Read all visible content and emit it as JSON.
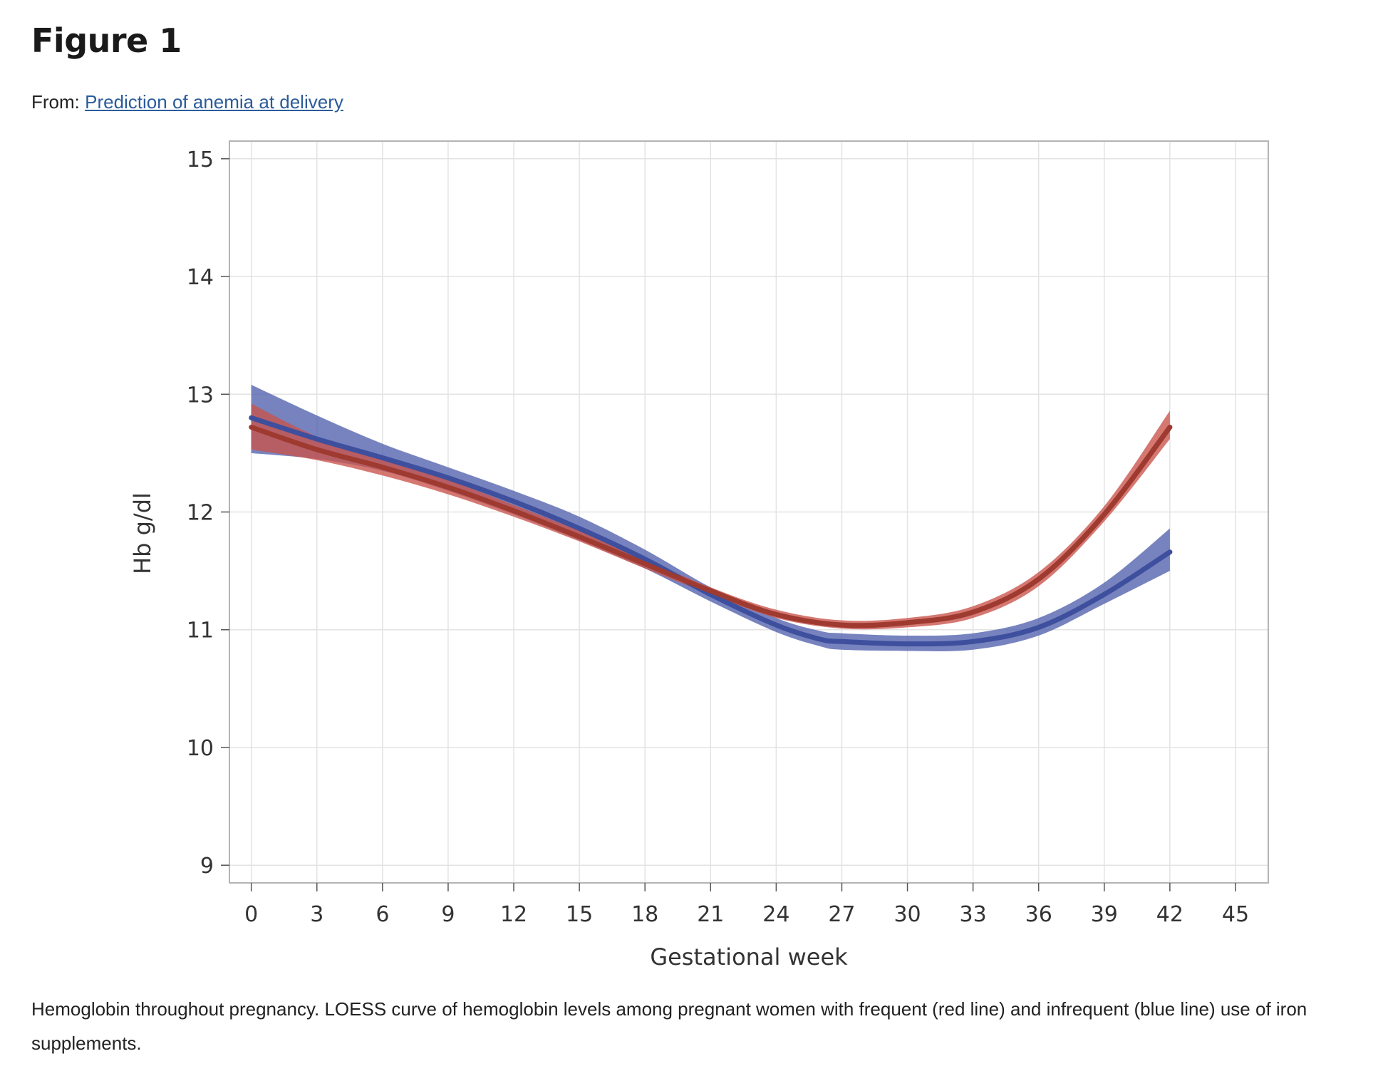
{
  "figure": {
    "title": "Figure 1",
    "from_prefix": "From: ",
    "from_link": "Prediction of anemia at delivery",
    "caption": "Hemoglobin throughout pregnancy. LOESS curve of hemoglobin levels among pregnant women with frequent (red line) and infrequent (blue line) use of iron supplements."
  },
  "colors": {
    "red_line": "#9e3a30",
    "red_band": "#c9524a",
    "blue_line": "#3e4f9e",
    "blue_band": "#5160ad",
    "grid": "#e3e3e3",
    "frame": "#b4b4b4"
  },
  "chart_data": {
    "type": "line",
    "title": "",
    "xlabel": "Gestational week",
    "ylabel": "Hb g/dl",
    "xlim": [
      -1,
      46.5
    ],
    "ylim": [
      8.85,
      15.15
    ],
    "xticks": [
      0,
      3,
      6,
      9,
      12,
      15,
      18,
      21,
      24,
      27,
      30,
      33,
      36,
      39,
      42,
      45
    ],
    "yticks": [
      9,
      10,
      11,
      12,
      13,
      14,
      15
    ],
    "grid": true,
    "series": [
      {
        "description": "infrequent use of iron supplements (blue line)",
        "x": [
          0,
          3,
          6,
          9,
          12,
          15,
          18,
          21,
          24,
          26,
          27,
          30,
          33,
          36,
          39,
          42
        ],
        "y": [
          12.8,
          12.62,
          12.46,
          12.29,
          12.09,
          11.86,
          11.6,
          11.3,
          11.04,
          10.92,
          10.9,
          10.88,
          10.9,
          11.02,
          11.3,
          11.66
        ],
        "lower": [
          12.5,
          12.45,
          12.35,
          12.18,
          11.98,
          11.76,
          11.52,
          11.24,
          10.98,
          10.86,
          10.83,
          10.82,
          10.83,
          10.95,
          11.22,
          11.5
        ],
        "upper": [
          13.08,
          12.82,
          12.58,
          12.38,
          12.18,
          11.96,
          11.68,
          11.36,
          11.1,
          10.99,
          10.97,
          10.95,
          10.97,
          11.1,
          11.4,
          11.86
        ]
      },
      {
        "description": "frequent use of iron supplements (red line)",
        "x": [
          0,
          3,
          6,
          9,
          12,
          15,
          18,
          21,
          24,
          27,
          30,
          33,
          36,
          39,
          42
        ],
        "y": [
          12.72,
          12.53,
          12.38,
          12.21,
          12.01,
          11.79,
          11.56,
          11.33,
          11.13,
          11.04,
          11.06,
          11.15,
          11.43,
          11.98,
          12.72
        ],
        "lower": [
          12.53,
          12.44,
          12.31,
          12.15,
          11.96,
          11.75,
          11.52,
          11.3,
          11.1,
          11.01,
          11.02,
          11.1,
          11.37,
          11.92,
          12.62
        ],
        "upper": [
          12.92,
          12.64,
          12.45,
          12.27,
          12.06,
          11.84,
          11.6,
          11.36,
          11.17,
          11.08,
          11.1,
          11.2,
          11.49,
          12.05,
          12.86
        ]
      }
    ]
  }
}
